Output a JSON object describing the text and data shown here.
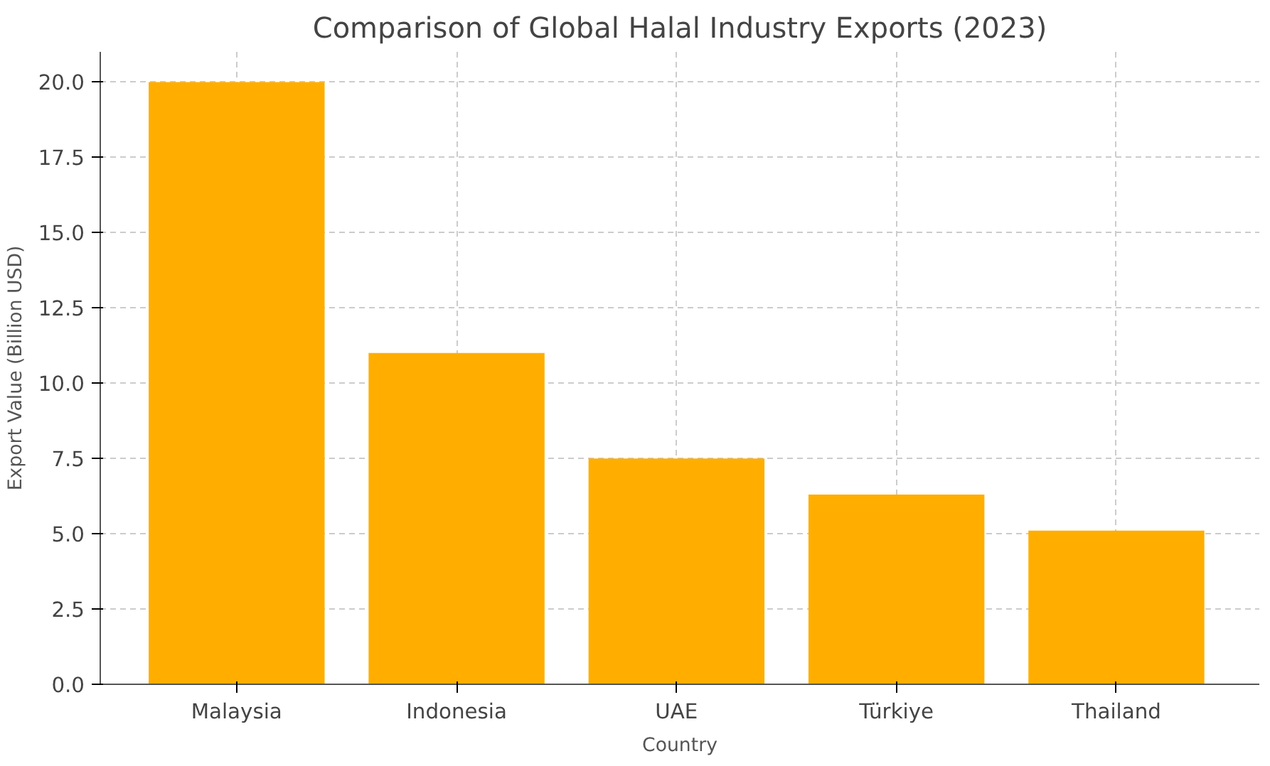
{
  "chart_data": {
    "type": "bar",
    "title": "Comparison of Global Halal Industry Exports (2023)",
    "xlabel": "Country",
    "ylabel": "Export Value (Billion USD)",
    "categories": [
      "Malaysia",
      "Indonesia",
      "UAE",
      "Türkiye",
      "Thailand"
    ],
    "values": [
      20.0,
      11.0,
      7.5,
      6.3,
      5.1
    ],
    "color": "#ffae00",
    "ylim": [
      0,
      21
    ],
    "yticks": [
      {
        "value": 0,
        "label": "0.0"
      },
      {
        "value": 2.5,
        "label": "2.5"
      },
      {
        "value": 5,
        "label": "5.0"
      },
      {
        "value": 7.5,
        "label": "7.5"
      },
      {
        "value": 10,
        "label": "10.0"
      },
      {
        "value": 12.5,
        "label": "12.5"
      },
      {
        "value": 15,
        "label": "15.0"
      },
      {
        "value": 17.5,
        "label": "17.5"
      },
      {
        "value": 20,
        "label": "20.0"
      }
    ],
    "grid": true
  }
}
